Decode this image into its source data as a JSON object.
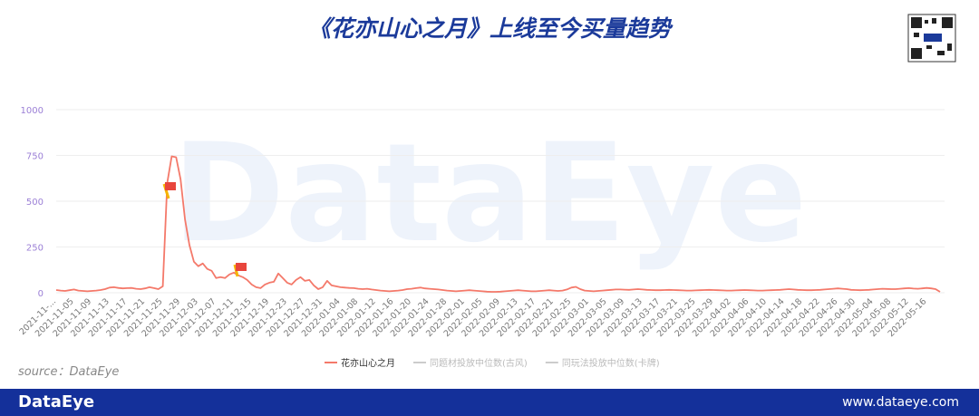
{
  "header": {
    "title": "《花亦山心之月》上线至今买量趋势"
  },
  "chart_data": {
    "type": "line",
    "categories": [
      "2021-11-...",
      null,
      null,
      null,
      "2021-11-05",
      null,
      null,
      null,
      "2021-11-09",
      null,
      null,
      null,
      "2021-11-13",
      null,
      null,
      null,
      "2021-11-17",
      null,
      null,
      null,
      "2021-11-21",
      null,
      null,
      null,
      "2021-11-25",
      null,
      null,
      null,
      "2021-11-29",
      null,
      null,
      null,
      "2021-12-03",
      null,
      null,
      null,
      "2021-12-07",
      null,
      null,
      null,
      "2021-12-11",
      null,
      null,
      null,
      "2021-12-15",
      null,
      null,
      null,
      "2021-12-19",
      null,
      null,
      null,
      "2021-12-23",
      null,
      null,
      null,
      "2021-12-27",
      null,
      null,
      null,
      "2021-12-31",
      null,
      null,
      null,
      "2022-01-04",
      null,
      null,
      null,
      "2022-01-08",
      null,
      null,
      null,
      "2022-01-12",
      null,
      null,
      null,
      "2022-01-16",
      null,
      null,
      null,
      "2022-01-20",
      null,
      null,
      null,
      "2022-01-24",
      null,
      null,
      null,
      "2022-01-28",
      null,
      null,
      null,
      "2022-02-01",
      null,
      null,
      null,
      "2022-02-05",
      null,
      null,
      null,
      "2022-02-09",
      null,
      null,
      null,
      "2022-02-13",
      null,
      null,
      null,
      "2022-02-17",
      null,
      null,
      null,
      "2022-02-21",
      null,
      null,
      null,
      "2022-02-25",
      null,
      null,
      null,
      "2022-03-01",
      null,
      null,
      null,
      "2022-03-05",
      null,
      null,
      null,
      "2022-03-09",
      null,
      null,
      null,
      "2022-03-13",
      null,
      null,
      null,
      "2022-03-17",
      null,
      null,
      null,
      "2022-03-21",
      null,
      null,
      null,
      "2022-03-25",
      null,
      null,
      null,
      "2022-03-29",
      null,
      null,
      null,
      "2022-04-02",
      null,
      null,
      null,
      "2022-04-06",
      null,
      null,
      null,
      "2022-04-10",
      null,
      null,
      null,
      "2022-04-14",
      null,
      null,
      null,
      "2022-04-18",
      null,
      null,
      null,
      "2022-04-22",
      null,
      null,
      null,
      "2022-04-26",
      null,
      null,
      null,
      "2022-04-30",
      null,
      null,
      null,
      "2022-05-04",
      null,
      null,
      null,
      "2022-05-08",
      null,
      null,
      null,
      "2022-05-12",
      null,
      null,
      null,
      "2022-05-16",
      null,
      null,
      null
    ],
    "series": [
      {
        "name": "花亦山心之月",
        "color": "#f4796a",
        "values": [
          15,
          12,
          10,
          14,
          18,
          12,
          10,
          8,
          10,
          12,
          15,
          20,
          28,
          30,
          26,
          24,
          25,
          26,
          22,
          20,
          24,
          30,
          25,
          20,
          35,
          600,
          745,
          740,
          620,
          400,
          260,
          170,
          145,
          160,
          130,
          120,
          80,
          85,
          80,
          100,
          110,
          95,
          85,
          70,
          45,
          30,
          25,
          45,
          55,
          60,
          105,
          80,
          55,
          45,
          70,
          85,
          65,
          70,
          40,
          20,
          30,
          65,
          40,
          35,
          30,
          28,
          26,
          25,
          22,
          20,
          22,
          18,
          15,
          12,
          10,
          8,
          10,
          12,
          15,
          20,
          22,
          25,
          28,
          24,
          22,
          20,
          18,
          15,
          12,
          10,
          8,
          10,
          12,
          14,
          12,
          10,
          8,
          6,
          5,
          5,
          6,
          8,
          10,
          12,
          14,
          12,
          10,
          8,
          8,
          10,
          12,
          14,
          12,
          10,
          12,
          18,
          28,
          32,
          20,
          12,
          10,
          8,
          10,
          12,
          14,
          16,
          18,
          18,
          17,
          16,
          18,
          20,
          18,
          16,
          15,
          14,
          14,
          15,
          16,
          15,
          14,
          13,
          12,
          12,
          13,
          14,
          15,
          16,
          15,
          14,
          13,
          12,
          12,
          13,
          14,
          15,
          14,
          13,
          12,
          12,
          13,
          14,
          15,
          16,
          18,
          20,
          18,
          16,
          15,
          14,
          14,
          15,
          16,
          18,
          20,
          22,
          24,
          22,
          20,
          16,
          15,
          14,
          15,
          16,
          18,
          20,
          22,
          21,
          20,
          20,
          22,
          24,
          25,
          23,
          22,
          24,
          26,
          24,
          20,
          5
        ]
      }
    ],
    "inactive_series": [
      {
        "name": "同题材投放中位数(古风)",
        "color": "#cccccc"
      },
      {
        "name": "同玩法投放中位数(卡牌)",
        "color": "#cccccc"
      }
    ],
    "ylim": [
      0,
      1000
    ],
    "yticks": [
      0,
      250,
      500,
      750,
      1000
    ],
    "grid": true
  },
  "source": "source：DataEye",
  "footer": {
    "brand": "DataEye",
    "url": "www.dataeye.com"
  }
}
